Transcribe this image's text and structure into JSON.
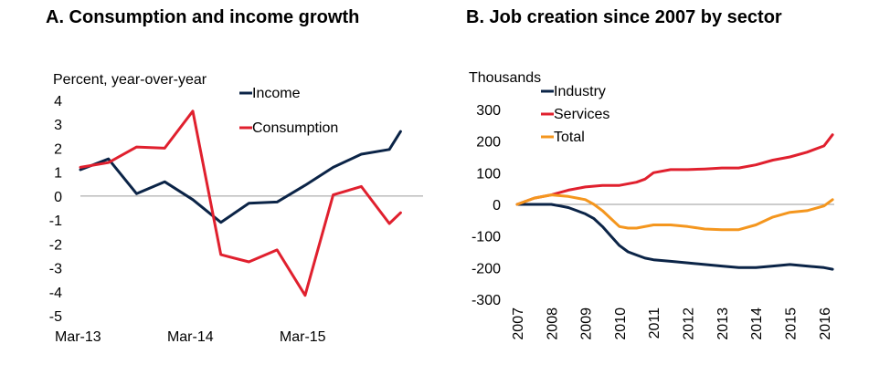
{
  "chart_data": [
    {
      "type": "line",
      "title": "A. Consumption and income growth",
      "ylabel": "Percent, year-over-year",
      "xlabel": "",
      "ylim": [
        -5,
        4
      ],
      "yticks": [
        4,
        3,
        2,
        1,
        0,
        -1,
        -2,
        -3,
        -4,
        -5
      ],
      "x_tick_labels": [
        "Mar-13",
        "Mar-14",
        "Mar-15"
      ],
      "x_tick_positions": [
        0,
        4,
        8
      ],
      "xlim": [
        0,
        12.2
      ],
      "zero_line": true,
      "legend_position": "top-right",
      "series": [
        {
          "name": "Income",
          "color": "#0b2447",
          "x": [
            0,
            1,
            2,
            3,
            4,
            5,
            6,
            7,
            8,
            9,
            10,
            11,
            11.4
          ],
          "values": [
            1.1,
            1.55,
            0.1,
            0.6,
            -0.15,
            -1.1,
            -0.3,
            -0.25,
            0.45,
            1.2,
            1.75,
            1.95,
            2.7
          ]
        },
        {
          "name": "Consumption",
          "color": "#e0202e",
          "x": [
            0,
            1,
            2,
            3,
            4,
            5,
            6,
            7,
            8,
            9,
            10,
            11,
            11.4
          ],
          "values": [
            1.2,
            1.4,
            2.05,
            2.0,
            3.55,
            -2.45,
            -2.75,
            -2.25,
            -4.15,
            0.05,
            0.4,
            -1.15,
            -0.7
          ]
        }
      ]
    },
    {
      "type": "line",
      "title": "B. Job creation since 2007 by sector",
      "ylabel": "Thousands",
      "xlabel": "",
      "ylim": [
        -300,
        300
      ],
      "yticks": [
        300,
        200,
        100,
        0,
        -100,
        -200,
        -300
      ],
      "x_tick_labels": [
        "2007",
        "2008",
        "2009",
        "2010",
        "2011",
        "2012",
        "2013",
        "2014",
        "2015",
        "2016"
      ],
      "x_tick_positions": [
        2007,
        2008,
        2009,
        2010,
        2011,
        2012,
        2013,
        2014,
        2015,
        2016
      ],
      "xlim": [
        2007,
        2016.3
      ],
      "zero_line": true,
      "legend_position": "top-left",
      "series": [
        {
          "name": "Industry",
          "color": "#0b2447",
          "x": [
            2007,
            2007.5,
            2008,
            2008.25,
            2008.5,
            2008.75,
            2009,
            2009.25,
            2009.5,
            2009.75,
            2010,
            2010.25,
            2010.5,
            2010.75,
            2011,
            2011.5,
            2012,
            2012.5,
            2013,
            2013.5,
            2014,
            2014.5,
            2015,
            2015.5,
            2016,
            2016.25
          ],
          "values": [
            0,
            0,
            0,
            -5,
            -10,
            -20,
            -30,
            -45,
            -70,
            -100,
            -130,
            -150,
            -160,
            -170,
            -175,
            -180,
            -185,
            -190,
            -195,
            -200,
            -200,
            -195,
            -190,
            -195,
            -200,
            -205
          ]
        },
        {
          "name": "Services",
          "color": "#e0202e",
          "x": [
            2007,
            2007.5,
            2008,
            2008.5,
            2009,
            2009.5,
            2010,
            2010.5,
            2010.75,
            2011,
            2011.5,
            2012,
            2012.5,
            2013,
            2013.5,
            2014,
            2014.5,
            2015,
            2015.5,
            2016,
            2016.25
          ],
          "values": [
            0,
            20,
            30,
            45,
            55,
            60,
            60,
            70,
            80,
            100,
            110,
            110,
            112,
            115,
            115,
            125,
            140,
            150,
            165,
            185,
            220
          ]
        },
        {
          "name": "Total",
          "color": "#f4961e",
          "x": [
            2007,
            2007.5,
            2008,
            2008.5,
            2009,
            2009.25,
            2009.5,
            2009.75,
            2010,
            2010.25,
            2010.5,
            2011,
            2011.5,
            2012,
            2012.5,
            2013,
            2013.5,
            2014,
            2014.5,
            2015,
            2015.5,
            2016,
            2016.25
          ],
          "values": [
            0,
            20,
            30,
            25,
            15,
            0,
            -20,
            -45,
            -70,
            -75,
            -75,
            -65,
            -65,
            -70,
            -78,
            -80,
            -80,
            -65,
            -40,
            -25,
            -20,
            -5,
            15
          ]
        }
      ]
    }
  ]
}
